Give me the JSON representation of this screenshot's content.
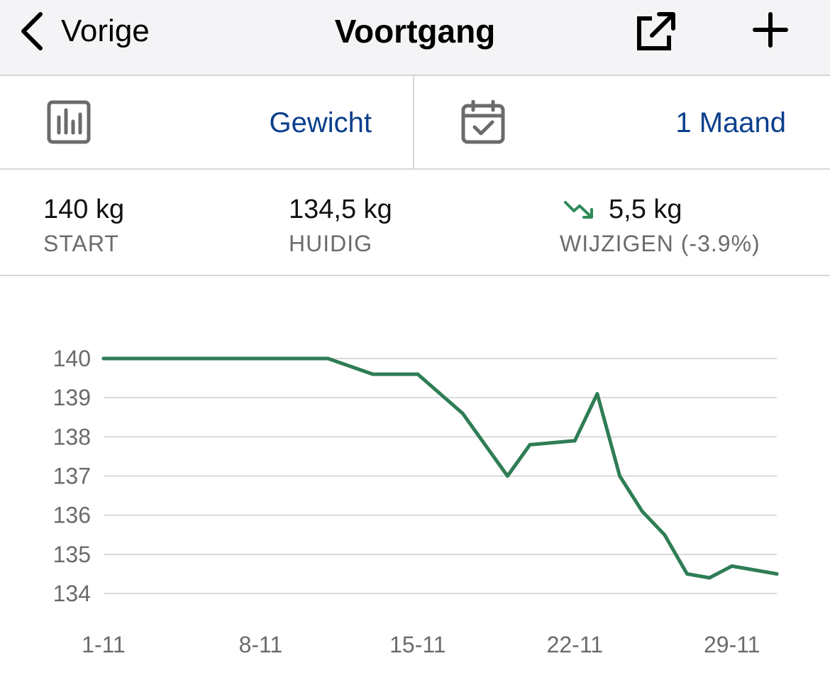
{
  "nav": {
    "back_label": "Vorige",
    "title": "Voortgang"
  },
  "selectors": {
    "metric": {
      "label": "Gewicht",
      "icon": "bar-chart-icon"
    },
    "period": {
      "label": "1 Maand",
      "icon": "calendar-check-icon"
    }
  },
  "stats": {
    "start": {
      "value": "140 kg",
      "label": "START"
    },
    "current": {
      "value": "134,5 kg",
      "label": "HUIDIG"
    },
    "change": {
      "value": "5,5 kg",
      "label": "WIJZIGEN (-3.9%)",
      "direction": "down"
    }
  },
  "colors": {
    "accent_blue": "#0a3f8c",
    "line_green": "#2e7d55",
    "grid": "#d9d9d9",
    "muted_text": "#6b6b6b"
  },
  "chart_data": {
    "type": "line",
    "xlabel": "",
    "ylabel": "",
    "x_tick_labels": [
      "1-11",
      "8-11",
      "15-11",
      "22-11",
      "29-11"
    ],
    "x_tick_days": [
      1,
      8,
      15,
      22,
      29
    ],
    "x_range_days": [
      1,
      31
    ],
    "y_ticks": [
      134,
      135,
      136,
      137,
      138,
      139,
      140
    ],
    "ylim": [
      134,
      140
    ],
    "grid": true,
    "series": [
      {
        "color": "#2e7d55",
        "x_days": [
          1,
          3,
          5,
          7,
          9,
          11,
          13,
          15,
          17,
          19,
          20,
          22,
          23,
          24,
          25,
          26,
          27,
          28,
          29,
          31
        ],
        "y": [
          140,
          140,
          140,
          140,
          140,
          140,
          139.6,
          139.6,
          138.6,
          137.0,
          137.8,
          137.9,
          139.1,
          137.0,
          136.1,
          135.5,
          134.5,
          134.4,
          134.7,
          134.5
        ]
      }
    ]
  }
}
